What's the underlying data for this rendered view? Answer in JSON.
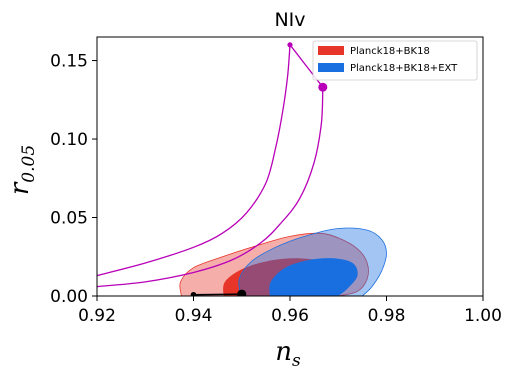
{
  "chart_data": {
    "type": "contour",
    "title": "NIv",
    "xlabel": {
      "main": "n",
      "sub": "s"
    },
    "ylabel": {
      "main": "r",
      "sub": "0.05"
    },
    "xlim": [
      0.92,
      1.0
    ],
    "ylim": [
      0.0,
      0.165
    ],
    "xticks": [
      0.92,
      0.94,
      0.96,
      0.98,
      1.0
    ],
    "xtick_labels": [
      "0.92",
      "0.94",
      "0.96",
      "0.98",
      "1.00"
    ],
    "yticks": [
      0.0,
      0.05,
      0.1,
      0.15
    ],
    "ytick_labels": [
      "0.00",
      "0.05",
      "0.10",
      "0.15"
    ],
    "grid": false,
    "legend_position": "top-right",
    "series": [
      {
        "name": "Planck18+BK18",
        "color": "#e8352a",
        "contours": [
          {
            "level": "95%",
            "opacity": 0.4,
            "points": [
              [
                0.9375,
                0.0
              ],
              [
                0.9373,
                0.009
              ],
              [
                0.94,
                0.018
              ],
              [
                0.946,
                0.025
              ],
              [
                0.953,
                0.032
              ],
              [
                0.96,
                0.038
              ],
              [
                0.966,
                0.04
              ],
              [
                0.97,
                0.037
              ],
              [
                0.974,
                0.03
              ],
              [
                0.976,
                0.021
              ],
              [
                0.976,
                0.011
              ],
              [
                0.974,
                0.003
              ],
              [
                0.97,
                0.0
              ]
            ]
          },
          {
            "level": "68%",
            "opacity": 1.0,
            "points": [
              [
                0.9462,
                0.0
              ],
              [
                0.9465,
                0.009
              ],
              [
                0.95,
                0.017
              ],
              [
                0.955,
                0.022
              ],
              [
                0.961,
                0.024
              ],
              [
                0.967,
                0.022
              ],
              [
                0.97,
                0.016
              ],
              [
                0.97,
                0.008
              ],
              [
                0.967,
                0.0
              ]
            ]
          }
        ]
      },
      {
        "name": "Planck18+BK18+EXT",
        "color": "#1a6fe0",
        "contours": [
          {
            "level": "95%",
            "opacity": 0.4,
            "points": [
              [
                0.9498,
                0.0
              ],
              [
                0.9495,
                0.011
              ],
              [
                0.952,
                0.022
              ],
              [
                0.957,
                0.031
              ],
              [
                0.963,
                0.038
              ],
              [
                0.97,
                0.043
              ],
              [
                0.976,
                0.042
              ],
              [
                0.979,
                0.036
              ],
              [
                0.98,
                0.027
              ],
              [
                0.979,
                0.016
              ],
              [
                0.977,
                0.006
              ],
              [
                0.975,
                0.0
              ]
            ]
          },
          {
            "level": "68%",
            "opacity": 1.0,
            "points": [
              [
                0.9558,
                0.0
              ],
              [
                0.956,
                0.009
              ],
              [
                0.959,
                0.018
              ],
              [
                0.964,
                0.023
              ],
              [
                0.969,
                0.024
              ],
              [
                0.973,
                0.021
              ],
              [
                0.974,
                0.013
              ],
              [
                0.972,
                0.005
              ],
              [
                0.97,
                0.0
              ]
            ]
          }
        ]
      }
    ],
    "theory_curves": [
      {
        "color": "#b800b8",
        "points": [
          [
            0.92,
            0.013
          ],
          [
            0.93,
            0.021
          ],
          [
            0.94,
            0.031
          ],
          [
            0.946,
            0.04
          ],
          [
            0.951,
            0.053
          ],
          [
            0.955,
            0.072
          ],
          [
            0.957,
            0.094
          ],
          [
            0.9585,
            0.118
          ],
          [
            0.9595,
            0.14
          ],
          [
            0.96,
            0.16
          ]
        ]
      },
      {
        "color": "#b800b8",
        "points": [
          [
            0.92,
            0.006
          ],
          [
            0.93,
            0.009
          ],
          [
            0.94,
            0.015
          ],
          [
            0.948,
            0.023
          ],
          [
            0.954,
            0.034
          ],
          [
            0.958,
            0.046
          ],
          [
            0.962,
            0.062
          ],
          [
            0.965,
            0.085
          ],
          [
            0.9665,
            0.11
          ],
          [
            0.9668,
            0.133
          ]
        ]
      },
      {
        "color": "#b800b8",
        "points": [
          [
            0.96,
            0.16
          ],
          [
            0.9668,
            0.133
          ]
        ]
      }
    ],
    "theory_endpoints": [
      {
        "x": 0.96,
        "y": 0.16,
        "size": "small",
        "color": "#b800b8"
      },
      {
        "x": 0.9668,
        "y": 0.133,
        "size": "large",
        "color": "#b800b8"
      }
    ],
    "black_segment": {
      "color": "#000000",
      "points": [
        [
          0.94,
          0.0008
        ],
        [
          0.95,
          0.0012
        ]
      ],
      "endpoints": [
        {
          "x": 0.94,
          "y": 0.0008,
          "size": "small"
        },
        {
          "x": 0.95,
          "y": 0.0012,
          "size": "large"
        }
      ]
    }
  }
}
